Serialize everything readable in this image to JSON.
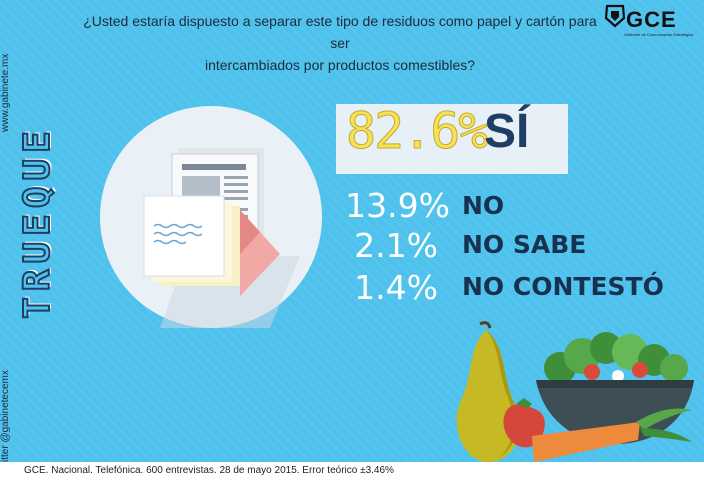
{
  "question": {
    "line1": "¿Usted estaría dispuesto a separar este tipo de residuos como papel y cartón para ser",
    "line2": "intercambiados por productos comestibles?"
  },
  "sidebar": {
    "website": "www.gabinete.mx",
    "section": "TRUEQUE",
    "social": "twitter @gabinetecemx"
  },
  "logo": {
    "text": "GCE",
    "subtitle": "Gabinete de Comunicación Estratégica"
  },
  "results": [
    {
      "pct": "82.6%",
      "label": "SÍ"
    },
    {
      "pct": "13.9%",
      "label": "NO"
    },
    {
      "pct": "2.1%",
      "label": "NO SABE"
    },
    {
      "pct": "1.4%",
      "label": "NO CONTESTÓ"
    }
  ],
  "footer": "GCE. Nacional. Telefónica. 600 entrevistas. 28 de mayo 2015. Error teórico ±3.46%",
  "colors": {
    "background": "#4ec2ec",
    "highlight_pct": "#f7e157",
    "label": "#16324f",
    "panel": "#e6f0f6"
  },
  "icons": [
    "newspaper-icon",
    "paper-stack-icon",
    "pear-icon",
    "strawberry-icon",
    "carrot-icon",
    "salad-bowl-icon"
  ]
}
